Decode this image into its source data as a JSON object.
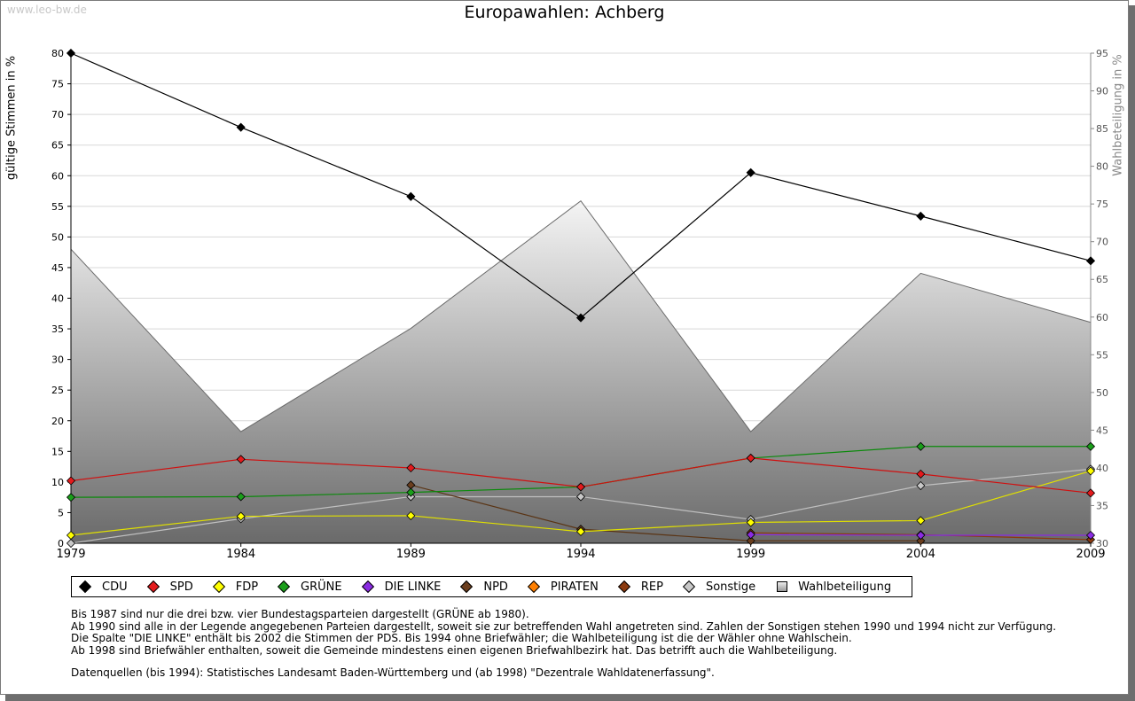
{
  "watermark": "www.leo-bw.de",
  "legend_items": [
    {
      "name": "CDU",
      "color": "#000000"
    },
    {
      "name": "SPD",
      "color": "#e41a1c"
    },
    {
      "name": "FDP",
      "color": "#ffff00"
    },
    {
      "name": "GRÜNE",
      "color": "#1a9e1a"
    },
    {
      "name": "DIE LINKE",
      "color": "#8a2be2"
    },
    {
      "name": "NPD",
      "color": "#6b3e1e"
    },
    {
      "name": "PIRATEN",
      "color": "#ff7f00"
    },
    {
      "name": "REP",
      "color": "#8b3a0f"
    },
    {
      "name": "Sonstige",
      "color": "#c8c8c8"
    },
    {
      "name": "Wahlbeteiligung",
      "color": "#999999"
    }
  ],
  "notes": [
    "Bis 1987 sind nur die drei bzw. vier Bundestagsparteien dargestellt (GRÜNE ab 1980).",
    "Ab 1990 sind alle in der Legende angegebenen Parteien dargestellt, soweit sie zur betreffenden Wahl angetreten sind. Zahlen der Sonstigen stehen 1990 und 1994 nicht zur Verfügung.",
    "Die Spalte \"DIE LINKE\" enthält bis 2002 die Stimmen der PDS. Bis 1994 ohne Briefwähler; die Wahlbeteiligung ist die der Wähler ohne Wahlschein.",
    "Ab 1998 sind Briefwähler enthalten, soweit die Gemeinde mindestens einen eigenen Briefwahlbezirk hat. Das betrifft auch die Wahlbeteiligung."
  ],
  "source": "Datenquellen (bis 1994): Statistisches Landesamt Baden-Württemberg und (ab 1998) \"Dezentrale Wahldatenerfassung\".",
  "chart_data": {
    "type": "line",
    "title": "Europawahlen: Achberg",
    "ylabel": "gültige Stimmen in %",
    "y2label": "Wahlbeteiligung in %",
    "xlabel": "",
    "categories": [
      "1979",
      "1984",
      "1989",
      "1994",
      "1999",
      "2004",
      "2009"
    ],
    "ylim": [
      0,
      80
    ],
    "yticks": [
      0,
      5,
      10,
      15,
      20,
      25,
      30,
      35,
      40,
      45,
      50,
      55,
      60,
      65,
      70,
      75,
      80
    ],
    "y2lim": [
      30,
      95
    ],
    "y2ticks": [
      30,
      35,
      40,
      45,
      50,
      55,
      60,
      65,
      70,
      75,
      80,
      85,
      90,
      95
    ],
    "grid": true,
    "area": {
      "name": "Wahlbeteiligung",
      "axis": "right",
      "values": [
        69.0,
        44.8,
        58.5,
        75.4,
        44.8,
        65.8,
        59.3
      ]
    },
    "series": [
      {
        "name": "CDU",
        "color": "#000000",
        "line": "#000000",
        "values": [
          80.0,
          67.9,
          56.6,
          36.8,
          60.5,
          53.4,
          46.1
        ]
      },
      {
        "name": "SPD",
        "color": "#e41a1c",
        "line": "#d01010",
        "values": [
          10.2,
          13.7,
          12.3,
          9.2,
          13.9,
          11.3,
          8.2
        ]
      },
      {
        "name": "FDP",
        "color": "#ffff00",
        "line": "#e0e000",
        "values": [
          1.3,
          4.4,
          4.5,
          1.9,
          3.4,
          3.7,
          11.8
        ]
      },
      {
        "name": "GRÜNE",
        "color": "#1a9e1a",
        "line": "#0a8a0a",
        "values": [
          7.5,
          7.6,
          8.3,
          9.2,
          13.9,
          15.8,
          15.8
        ]
      },
      {
        "name": "DIE LINKE",
        "color": "#8a2be2",
        "line": "#8a2be2",
        "values": [
          null,
          null,
          null,
          null,
          1.4,
          1.3,
          1.3
        ]
      },
      {
        "name": "NPD",
        "color": "#6b3e1e",
        "line": "#5a3414",
        "values": [
          null,
          null,
          9.5,
          2.3,
          0.4,
          0.4,
          null
        ]
      },
      {
        "name": "REP",
        "color": "#8b3a0f",
        "line": "#8b3a0f",
        "values": [
          null,
          null,
          null,
          null,
          1.7,
          1.4,
          0.6
        ]
      },
      {
        "name": "Sonstige",
        "color": "#c8c8c8",
        "line": "#c0c0c0",
        "values": [
          0.0,
          4.0,
          7.6,
          7.6,
          3.9,
          9.4,
          12.1
        ]
      }
    ]
  }
}
